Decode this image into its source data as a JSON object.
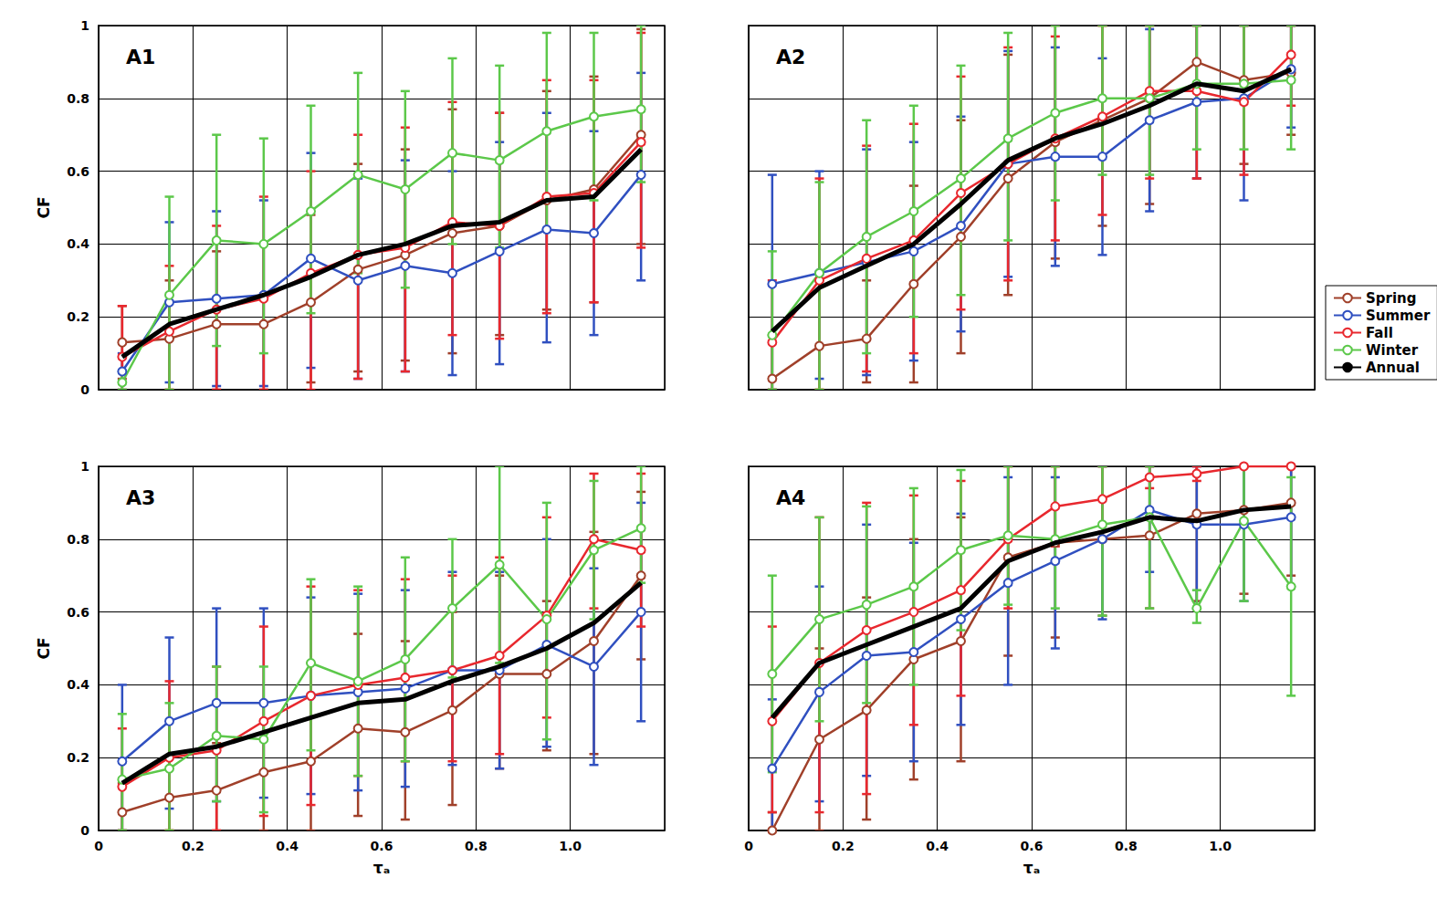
{
  "chart_data": [
    {
      "type": "line",
      "title": "A1",
      "y_label": "CF",
      "tick_labels": "y",
      "grid": true,
      "x": [
        0.05,
        0.15,
        0.25,
        0.35,
        0.45,
        0.55,
        0.65,
        0.75,
        0.85,
        0.95,
        1.05,
        1.15
      ],
      "xlim": [
        0,
        1.2
      ],
      "xticks": [
        0,
        0.2,
        0.4,
        0.6,
        0.8,
        {
          "value": 1,
          "label": "1.0"
        }
      ],
      "ylim": [
        0,
        1
      ],
      "yticks": [
        0,
        0.2,
        0.4,
        0.6,
        0.8,
        1
      ],
      "series": [
        {
          "name": "Spring",
          "color": "#a0402a",
          "marker": "circle",
          "values": [
            0.13,
            0.14,
            0.18,
            0.18,
            0.24,
            0.33,
            0.37,
            0.43,
            0.45,
            0.52,
            0.55,
            0.7
          ],
          "lower": [
            0.03,
            0,
            0,
            0,
            0.02,
            0.05,
            0.08,
            0.1,
            0.15,
            0.22,
            0.24,
            0.4
          ],
          "upper": [
            0.23,
            0.3,
            0.38,
            0.4,
            0.48,
            0.62,
            0.66,
            0.77,
            0.76,
            0.82,
            0.86,
            0.99
          ]
        },
        {
          "name": "Summer",
          "color": "#3050c0",
          "marker": "circle",
          "values": [
            0.05,
            0.24,
            0.25,
            0.26,
            0.36,
            0.3,
            0.34,
            0.32,
            0.38,
            0.44,
            0.43,
            0.59
          ],
          "lower": [
            0,
            0.02,
            0.01,
            0.01,
            0.06,
            0.03,
            0.05,
            0.04,
            0.07,
            0.13,
            0.15,
            0.3
          ],
          "upper": [
            0.1,
            0.46,
            0.49,
            0.52,
            0.65,
            0.58,
            0.63,
            0.6,
            0.68,
            0.76,
            0.71,
            0.87
          ]
        },
        {
          "name": "Fall",
          "color": "#e8282e",
          "marker": "circle",
          "values": [
            0.09,
            0.16,
            0.22,
            0.25,
            0.32,
            0.37,
            0.39,
            0.46,
            0.45,
            0.53,
            0.54,
            0.68
          ],
          "lower": [
            0,
            0,
            0,
            0,
            0,
            0.03,
            0.05,
            0.15,
            0.14,
            0.21,
            0.24,
            0.39
          ],
          "upper": [
            0.23,
            0.34,
            0.45,
            0.53,
            0.6,
            0.7,
            0.72,
            0.79,
            0.76,
            0.85,
            0.85,
            0.98
          ]
        },
        {
          "name": "Winter",
          "color": "#5cc84a",
          "marker": "circle",
          "values": [
            0.02,
            0.26,
            0.41,
            0.4,
            0.49,
            0.59,
            0.55,
            0.65,
            0.63,
            0.71,
            0.75,
            0.77
          ],
          "lower": [
            0,
            0,
            0.12,
            0.1,
            0.21,
            0.32,
            0.28,
            0.4,
            0.39,
            0.44,
            0.52,
            0.57
          ],
          "upper": [
            0.05,
            0.53,
            0.7,
            0.69,
            0.78,
            0.87,
            0.82,
            0.91,
            0.89,
            0.98,
            0.98,
            1.0
          ]
        },
        {
          "name": "Annual",
          "color": "#000000",
          "marker": "none",
          "values": [
            0.09,
            0.18,
            0.22,
            0.26,
            0.31,
            0.37,
            0.4,
            0.45,
            0.46,
            0.52,
            0.53,
            0.66
          ]
        }
      ]
    },
    {
      "type": "line",
      "title": "A2",
      "tick_labels": false,
      "grid": true,
      "legend": "lower right",
      "x": [
        0.05,
        0.15,
        0.25,
        0.35,
        0.45,
        0.55,
        0.65,
        0.75,
        0.85,
        0.95,
        1.05,
        1.15
      ],
      "xlim": [
        0,
        1.2
      ],
      "xticks": [
        0,
        0.2,
        0.4,
        0.6,
        0.8,
        {
          "value": 1,
          "label": "1.0"
        }
      ],
      "ylim": [
        0,
        1
      ],
      "yticks": [
        0,
        0.2,
        0.4,
        0.6,
        0.8,
        1
      ],
      "series": [
        {
          "name": "Spring",
          "color": "#a0402a",
          "marker": "circle",
          "values": [
            0.03,
            0.12,
            0.14,
            0.29,
            0.42,
            0.58,
            0.68,
            0.74,
            0.8,
            0.9,
            0.85,
            0.87
          ],
          "lower": [
            0,
            0,
            0.02,
            0.02,
            0.1,
            0.26,
            0.36,
            0.45,
            0.51,
            0.58,
            0.62,
            0.7
          ],
          "upper": [
            0.15,
            0.3,
            0.3,
            0.56,
            0.74,
            0.92,
            1.0,
            1.0,
            1.0,
            1.0,
            1.0,
            1.0
          ]
        },
        {
          "name": "Summer",
          "color": "#3050c0",
          "marker": "circle",
          "values": [
            0.29,
            0.32,
            0.35,
            0.38,
            0.45,
            0.62,
            0.64,
            0.64,
            0.74,
            0.79,
            0.8,
            0.88
          ],
          "lower": [
            0,
            0.03,
            0.04,
            0.08,
            0.16,
            0.31,
            0.34,
            0.37,
            0.49,
            0.58,
            0.52,
            0.72
          ],
          "upper": [
            0.59,
            0.6,
            0.66,
            0.68,
            0.75,
            0.93,
            0.94,
            0.91,
            0.99,
            1.0,
            1.0,
            1.0
          ]
        },
        {
          "name": "Fall",
          "color": "#e8282e",
          "marker": "circle",
          "values": [
            0.13,
            0.3,
            0.36,
            0.41,
            0.54,
            0.62,
            0.69,
            0.75,
            0.82,
            0.82,
            0.79,
            0.92
          ],
          "lower": [
            0,
            0,
            0.05,
            0.1,
            0.22,
            0.3,
            0.41,
            0.48,
            0.58,
            0.58,
            0.59,
            0.78
          ],
          "upper": [
            0.3,
            0.58,
            0.67,
            0.73,
            0.86,
            0.94,
            0.97,
            1.0,
            1.0,
            1.0,
            1.0,
            1.0
          ]
        },
        {
          "name": "Winter",
          "color": "#5cc84a",
          "marker": "circle",
          "values": [
            0.15,
            0.32,
            0.42,
            0.49,
            0.58,
            0.69,
            0.76,
            0.8,
            0.8,
            0.84,
            0.84,
            0.85
          ],
          "lower": [
            0,
            0,
            0.1,
            0.2,
            0.26,
            0.41,
            0.52,
            0.59,
            0.59,
            0.66,
            0.66,
            0.66
          ],
          "upper": [
            0.38,
            0.57,
            0.74,
            0.78,
            0.89,
            0.98,
            1.0,
            1.0,
            1.0,
            1.0,
            1.0,
            1.0
          ]
        },
        {
          "name": "Annual",
          "color": "#000000",
          "marker": "none",
          "values": [
            0.16,
            0.28,
            0.34,
            0.4,
            0.51,
            0.63,
            0.69,
            0.73,
            0.78,
            0.84,
            0.82,
            0.88
          ]
        }
      ]
    },
    {
      "type": "line",
      "title": "A3",
      "y_label": "CF",
      "x_label": "τₐ",
      "grid": true,
      "x": [
        0.05,
        0.15,
        0.25,
        0.35,
        0.45,
        0.55,
        0.65,
        0.75,
        0.85,
        0.95,
        1.05,
        1.15
      ],
      "xlim": [
        0,
        1.2
      ],
      "xticks": [
        0,
        0.2,
        0.4,
        0.6,
        0.8,
        {
          "value": 1,
          "label": "1.0"
        }
      ],
      "ylim": [
        0,
        1
      ],
      "yticks": [
        0,
        0.2,
        0.4,
        0.6,
        0.8,
        1
      ],
      "series": [
        {
          "name": "Spring",
          "color": "#a0402a",
          "marker": "circle",
          "values": [
            0.05,
            0.09,
            0.11,
            0.16,
            0.19,
            0.28,
            0.27,
            0.33,
            0.43,
            0.43,
            0.52,
            0.7
          ],
          "lower": [
            0,
            0,
            0,
            0,
            0,
            0.04,
            0.03,
            0.07,
            0.17,
            0.22,
            0.21,
            0.47
          ],
          "upper": [
            0.13,
            0.2,
            0.24,
            0.35,
            0.46,
            0.54,
            0.52,
            0.6,
            0.7,
            0.63,
            0.82,
            0.93
          ]
        },
        {
          "name": "Summer",
          "color": "#3050c0",
          "marker": "circle",
          "values": [
            0.19,
            0.3,
            0.35,
            0.35,
            0.37,
            0.38,
            0.39,
            0.44,
            0.44,
            0.51,
            0.45,
            0.6
          ],
          "lower": [
            0,
            0.06,
            0.08,
            0.09,
            0.1,
            0.11,
            0.12,
            0.18,
            0.17,
            0.23,
            0.18,
            0.3
          ],
          "upper": [
            0.4,
            0.53,
            0.61,
            0.61,
            0.64,
            0.65,
            0.66,
            0.71,
            0.71,
            0.8,
            0.72,
            0.9
          ]
        },
        {
          "name": "Fall",
          "color": "#e8282e",
          "marker": "circle",
          "values": [
            0.12,
            0.2,
            0.22,
            0.3,
            0.37,
            0.4,
            0.42,
            0.44,
            0.48,
            0.59,
            0.8,
            0.77
          ],
          "lower": [
            0,
            0,
            0,
            0.04,
            0.07,
            0.15,
            0.19,
            0.19,
            0.21,
            0.31,
            0.61,
            0.56
          ],
          "upper": [
            0.28,
            0.41,
            0.45,
            0.56,
            0.67,
            0.66,
            0.69,
            0.7,
            0.75,
            0.86,
            0.98,
            0.98
          ]
        },
        {
          "name": "Winter",
          "color": "#5cc84a",
          "marker": "circle",
          "values": [
            0.14,
            0.17,
            0.26,
            0.25,
            0.46,
            0.41,
            0.47,
            0.61,
            0.73,
            0.58,
            0.77,
            0.83
          ],
          "lower": [
            0,
            0,
            0.08,
            0.05,
            0.22,
            0.15,
            0.19,
            0.42,
            0.46,
            0.25,
            0.58,
            0.68
          ],
          "upper": [
            0.32,
            0.35,
            0.45,
            0.45,
            0.69,
            0.67,
            0.75,
            0.8,
            1.0,
            0.9,
            0.96,
            1.0
          ]
        },
        {
          "name": "Annual",
          "color": "#000000",
          "marker": "none",
          "values": [
            0.13,
            0.21,
            0.23,
            0.27,
            0.31,
            0.35,
            0.36,
            0.41,
            0.45,
            0.5,
            0.57,
            0.68
          ]
        }
      ]
    },
    {
      "type": "line",
      "title": "A4",
      "x_label": "τₐ",
      "tick_labels": "x",
      "grid": true,
      "x": [
        0.05,
        0.15,
        0.25,
        0.35,
        0.45,
        0.55,
        0.65,
        0.75,
        0.85,
        0.95,
        1.05,
        1.15
      ],
      "xlim": [
        0,
        1.2
      ],
      "xticks": [
        0,
        0.2,
        0.4,
        0.6,
        0.8,
        {
          "value": 1,
          "label": "1.0"
        }
      ],
      "ylim": [
        0,
        1
      ],
      "yticks": [
        0,
        0.2,
        0.4,
        0.6,
        0.8,
        1
      ],
      "series": [
        {
          "name": "Spring",
          "color": "#a0402a",
          "marker": "circle",
          "values": [
            0.0,
            0.25,
            0.33,
            0.47,
            0.52,
            0.75,
            0.79,
            0.8,
            0.81,
            0.87,
            0.88,
            0.9
          ],
          "lower": [
            0,
            0,
            0.03,
            0.14,
            0.19,
            0.48,
            0.53,
            0.59,
            0.61,
            0.63,
            0.65,
            0.7
          ],
          "upper": [
            0.05,
            0.5,
            0.64,
            0.8,
            0.86,
            1.0,
            1.0,
            1.0,
            1.0,
            1.0,
            1.0,
            1.0
          ]
        },
        {
          "name": "Summer",
          "color": "#3050c0",
          "marker": "circle",
          "values": [
            0.17,
            0.38,
            0.48,
            0.49,
            0.58,
            0.68,
            0.74,
            0.8,
            0.88,
            0.84,
            0.84,
            0.86
          ],
          "lower": [
            0,
            0.08,
            0.15,
            0.19,
            0.29,
            0.4,
            0.5,
            0.58,
            0.71,
            0.61,
            0.63,
            0.67
          ],
          "upper": [
            0.36,
            0.67,
            0.84,
            0.79,
            0.87,
            0.97,
            0.97,
            1.0,
            1.0,
            1.0,
            1.0,
            1.0
          ]
        },
        {
          "name": "Fall",
          "color": "#e8282e",
          "marker": "circle",
          "values": [
            0.3,
            0.46,
            0.55,
            0.6,
            0.66,
            0.8,
            0.89,
            0.91,
            0.97,
            0.98,
            1.0,
            1.0
          ],
          "lower": [
            0.05,
            0.05,
            0.1,
            0.29,
            0.37,
            0.61,
            0.78,
            0.82,
            0.94,
            0.96,
            1.0,
            1.0
          ],
          "upper": [
            0.56,
            0.86,
            0.9,
            0.92,
            0.96,
            1.0,
            1.0,
            1.0,
            1.0,
            1.0,
            1.0,
            1.0
          ]
        },
        {
          "name": "Winter",
          "color": "#5cc84a",
          "marker": "circle",
          "values": [
            0.43,
            0.58,
            0.62,
            0.67,
            0.77,
            0.81,
            0.8,
            0.84,
            0.86,
            0.61,
            0.85,
            0.67
          ],
          "lower": [
            0.16,
            0.3,
            0.35,
            0.4,
            0.55,
            0.62,
            0.61,
            0.59,
            0.61,
            0.57,
            0.63,
            0.37
          ],
          "upper": [
            0.7,
            0.86,
            0.89,
            0.94,
            0.99,
            1.0,
            1.0,
            1.0,
            1.0,
            0.66,
            1.0,
            0.97
          ]
        },
        {
          "name": "Annual",
          "color": "#000000",
          "marker": "none",
          "values": [
            0.31,
            0.46,
            0.51,
            0.56,
            0.61,
            0.74,
            0.79,
            0.82,
            0.86,
            0.85,
            0.88,
            0.89
          ]
        }
      ]
    }
  ]
}
